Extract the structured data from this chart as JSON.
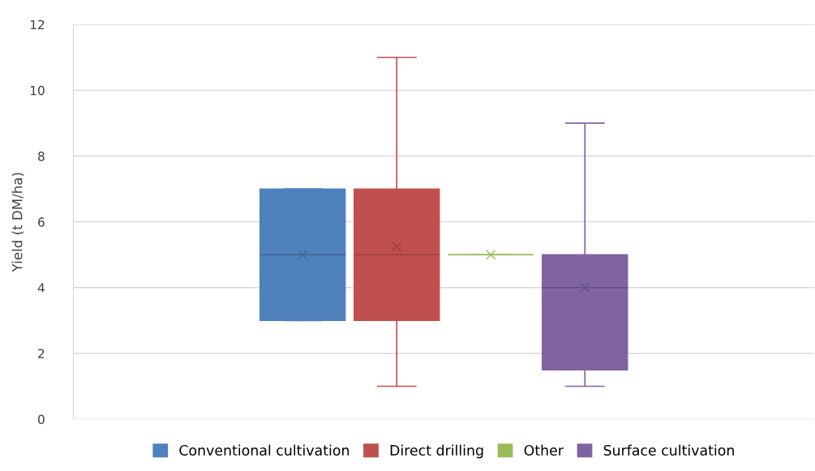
{
  "chart_data": {
    "type": "box",
    "ylabel": "Yield (t DM/ha)",
    "categories": [
      null
    ],
    "ylim": [
      0,
      12
    ],
    "yticks": [
      0,
      2,
      4,
      6,
      8,
      10,
      12
    ],
    "grid": "y",
    "legend": "bottom",
    "marker": "cross",
    "series": [
      {
        "name": "Conventional cultivation",
        "color": "#4f81bd",
        "boxes": [
          {
            "low": 3,
            "q1": 3,
            "median": 5,
            "q3": 7,
            "high": 7,
            "mean": 5
          }
        ]
      },
      {
        "name": "Direct drilling",
        "color": "#c0504d",
        "boxes": [
          {
            "low": 1,
            "q1": 3,
            "median": 5,
            "q3": 7,
            "high": 11,
            "mean": 5.25
          }
        ]
      },
      {
        "name": "Other",
        "color": "#9bbb59",
        "boxes": [
          {
            "low": 5,
            "q1": 5,
            "median": 5,
            "q3": 5,
            "high": 5,
            "mean": 5
          }
        ]
      },
      {
        "name": "Surface cultivation",
        "color": "#8064a2",
        "boxes": [
          {
            "low": 1,
            "q1": 1.5,
            "median": 4,
            "q3": 5,
            "high": 9,
            "mean": 4
          }
        ]
      }
    ]
  }
}
